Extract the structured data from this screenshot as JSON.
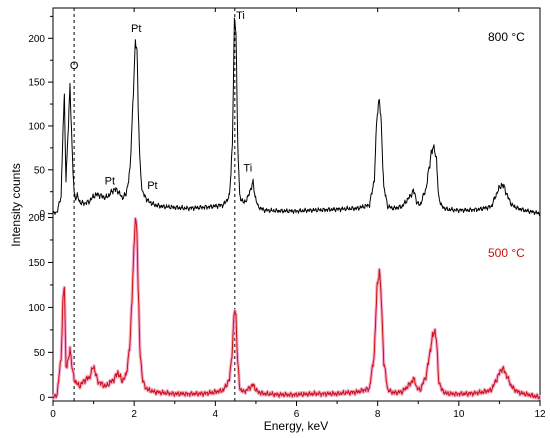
{
  "chart_data": {
    "type": "line",
    "xlabel": "Energy, keV",
    "ylabel": "Intensity counts",
    "xlim": [
      0,
      12
    ],
    "x_ticks": [
      "0",
      "2",
      "4",
      "6",
      "8",
      "10",
      "12"
    ],
    "grid": false,
    "legend": "none",
    "colors": {
      "top": "#000000",
      "bottom": "#cc1111",
      "bottom_halo": "#f2a6cc"
    },
    "panels": [
      {
        "name": "top",
        "ylim": [
          -5,
          230
        ],
        "y_ticks": [
          "0",
          "50",
          "100",
          "150",
          "200"
        ],
        "series_label": "800 °C",
        "series": [
          {
            "name": "800 °C",
            "x": [
              0.0,
              0.1,
              0.2,
              0.25,
              0.28,
              0.32,
              0.38,
              0.42,
              0.48,
              0.52,
              0.55,
              0.6,
              0.65,
              0.7,
              0.8,
              0.9,
              1.0,
              1.1,
              1.2,
              1.3,
              1.4,
              1.5,
              1.6,
              1.7,
              1.8,
              1.9,
              1.98,
              2.03,
              2.07,
              2.1,
              2.14,
              2.2,
              2.26,
              2.35,
              2.5,
              2.7,
              3.0,
              3.3,
              3.6,
              3.9,
              4.2,
              4.35,
              4.42,
              4.47,
              4.51,
              4.55,
              4.6,
              4.7,
              4.8,
              4.88,
              4.93,
              4.98,
              5.05,
              5.2,
              5.5,
              6.0,
              6.5,
              7.0,
              7.5,
              7.8,
              7.92,
              7.98,
              8.04,
              8.09,
              8.15,
              8.25,
              8.4,
              8.6,
              8.8,
              8.88,
              8.92,
              8.97,
              9.05,
              9.2,
              9.32,
              9.4,
              9.45,
              9.5,
              9.58,
              9.7,
              9.9,
              10.2,
              10.5,
              10.8,
              10.95,
              11.05,
              11.12,
              11.2,
              11.3,
              11.45,
              11.6,
              11.8,
              12.0
            ],
            "y": [
              0,
              2,
              20,
              100,
              132,
              40,
              100,
              148,
              60,
              24,
              18,
              20,
              14,
              12,
              12,
              14,
              20,
              22,
              20,
              18,
              22,
              28,
              26,
              18,
              22,
              50,
              140,
              195,
              190,
              120,
              60,
              25,
              20,
              14,
              10,
              8,
              7,
              6,
              7,
              8,
              10,
              20,
              80,
              220,
              210,
              80,
              20,
              12,
              18,
              30,
              35,
              20,
              8,
              4,
              3,
              3,
              4,
              5,
              6,
              10,
              40,
              110,
              132,
              100,
              30,
              8,
              6,
              8,
              20,
              26,
              22,
              12,
              10,
              30,
              70,
              76,
              60,
              20,
              8,
              5,
              4,
              4,
              5,
              8,
              25,
              33,
              30,
              20,
              10,
              6,
              4,
              2,
              0
            ]
          }
        ]
      },
      {
        "name": "bottom",
        "ylim": [
          -3,
          205
        ],
        "y_ticks": [
          "0",
          "50",
          "100",
          "150",
          "200"
        ],
        "series_label": "500 °C",
        "series": [
          {
            "name": "500 °C",
            "x": [
              0.0,
              0.1,
              0.2,
              0.25,
              0.28,
              0.32,
              0.38,
              0.42,
              0.48,
              0.52,
              0.55,
              0.6,
              0.65,
              0.7,
              0.8,
              0.9,
              1.0,
              1.1,
              1.2,
              1.3,
              1.4,
              1.5,
              1.6,
              1.7,
              1.8,
              1.9,
              1.98,
              2.03,
              2.07,
              2.1,
              2.14,
              2.2,
              2.26,
              2.35,
              2.5,
              2.7,
              3.0,
              3.3,
              3.6,
              3.9,
              4.2,
              4.35,
              4.42,
              4.47,
              4.51,
              4.55,
              4.6,
              4.7,
              4.8,
              4.88,
              4.93,
              4.98,
              5.05,
              5.2,
              5.5,
              6.0,
              6.5,
              7.0,
              7.5,
              7.8,
              7.92,
              7.98,
              8.04,
              8.09,
              8.15,
              8.25,
              8.4,
              8.6,
              8.8,
              8.88,
              8.92,
              8.97,
              9.05,
              9.2,
              9.32,
              9.4,
              9.45,
              9.5,
              9.58,
              9.7,
              9.9,
              10.2,
              10.5,
              10.8,
              10.95,
              11.05,
              11.12,
              11.2,
              11.3,
              11.45,
              11.6,
              11.8,
              12.0
            ],
            "y": [
              0,
              3,
              45,
              110,
              125,
              35,
              40,
              55,
              30,
              20,
              18,
              15,
              12,
              15,
              20,
              22,
              35,
              18,
              15,
              12,
              16,
              20,
              28,
              18,
              24,
              60,
              150,
              200,
              185,
              120,
              55,
              22,
              12,
              8,
              6,
              5,
              4,
              4,
              4,
              5,
              8,
              20,
              55,
              98,
              90,
              40,
              10,
              6,
              9,
              12,
              14,
              10,
              6,
              4,
              3,
              3,
              4,
              4,
              6,
              10,
              50,
              120,
              142,
              110,
              40,
              8,
              5,
              6,
              15,
              20,
              18,
              10,
              8,
              25,
              60,
              75,
              65,
              20,
              8,
              4,
              4,
              4,
              5,
              8,
              22,
              32,
              30,
              22,
              12,
              6,
              4,
              2,
              0
            ]
          }
        ]
      }
    ],
    "annotations": [
      {
        "text": "O",
        "x": 0.52,
        "y": 165,
        "panel": "top"
      },
      {
        "text": "Pt",
        "x": 2.05,
        "y": 207,
        "panel": "top"
      },
      {
        "text": "Ti",
        "x": 4.62,
        "y": 222,
        "panel": "top"
      },
      {
        "text": "Pt",
        "x": 1.4,
        "y": 33,
        "panel": "top"
      },
      {
        "text": "Pt",
        "x": 2.45,
        "y": 28,
        "panel": "top"
      },
      {
        "text": "Ti",
        "x": 4.8,
        "y": 48,
        "panel": "top"
      }
    ],
    "reference_lines_x": [
      0.52,
      4.48
    ]
  }
}
